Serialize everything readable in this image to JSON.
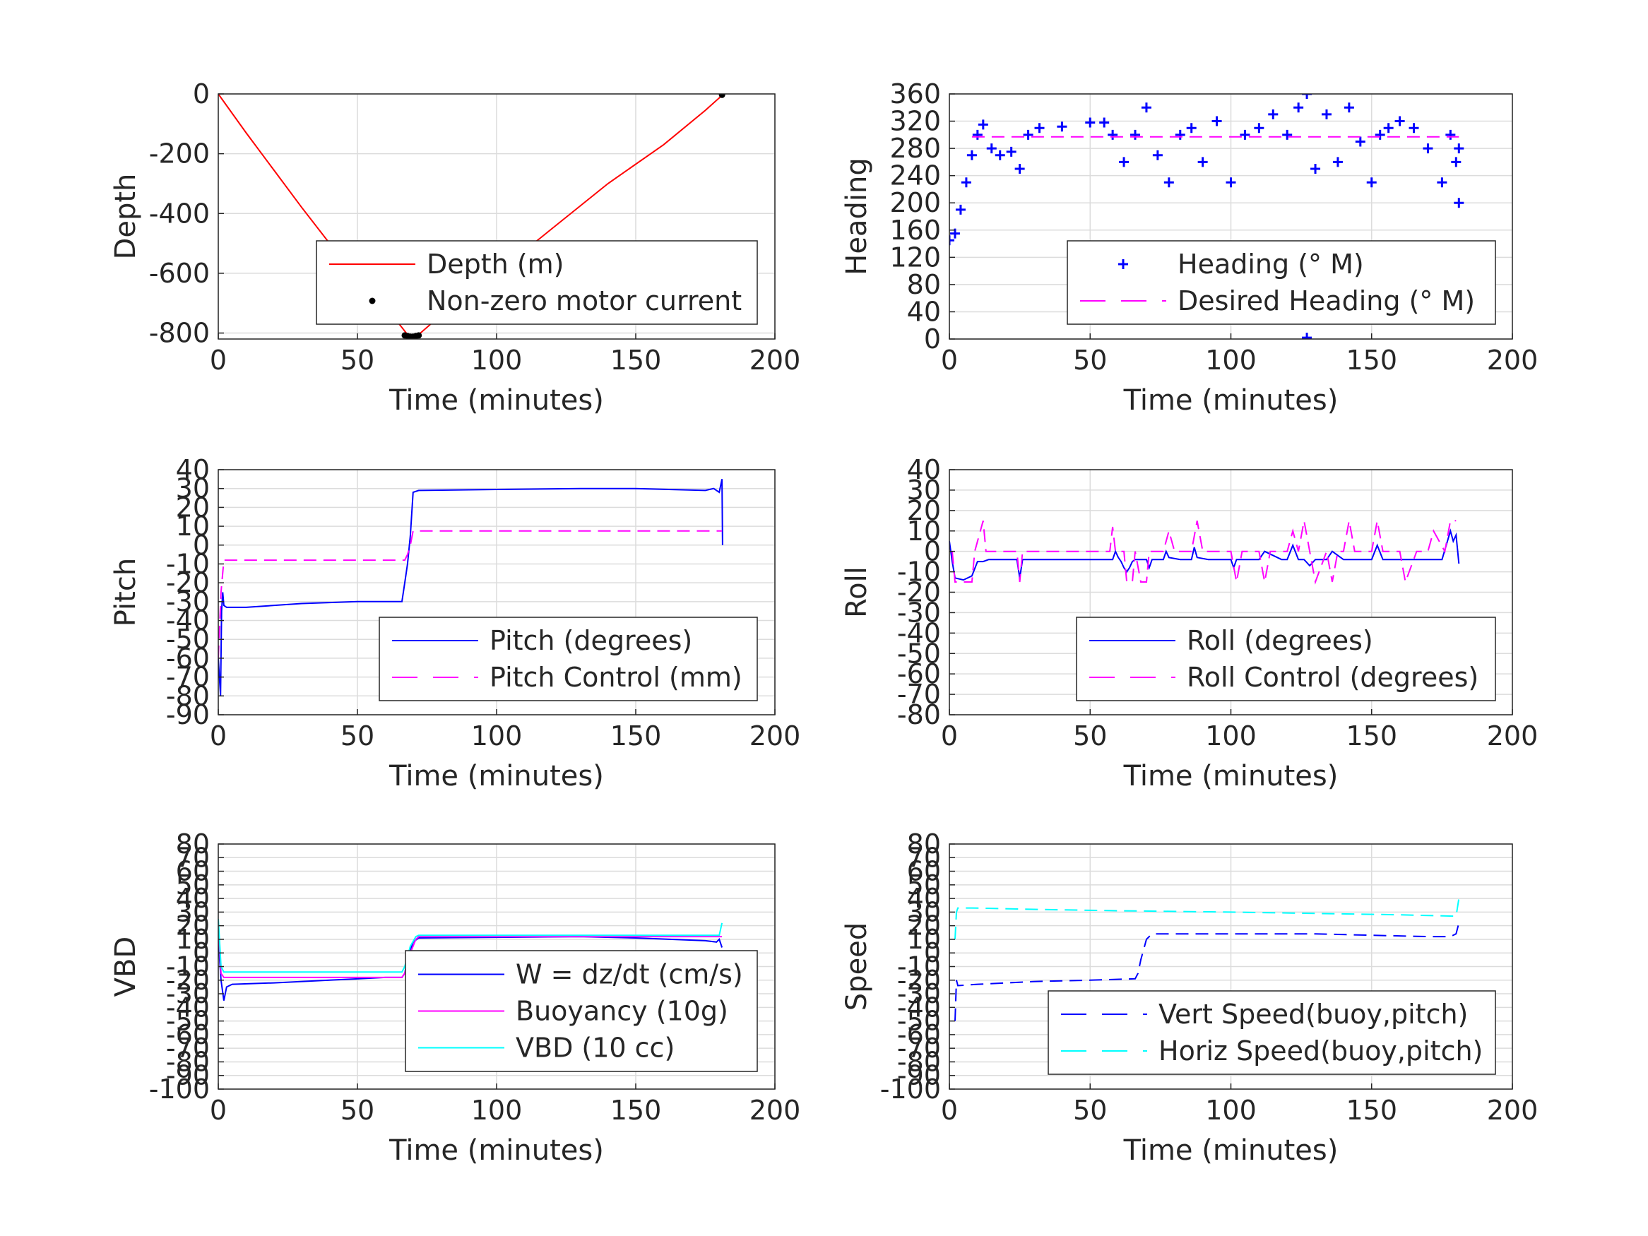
{
  "figure": {
    "colors": {
      "axis": "#262626",
      "grid": "#dcdcdc",
      "red": "#ff0000",
      "blue": "#0000ff",
      "magenta": "#ff00ff",
      "cyan": "#00ffff",
      "black": "#000000"
    }
  },
  "chart_data": [
    {
      "id": "depth",
      "type": "line",
      "xlabel": "Time (minutes)",
      "ylabel": "Depth",
      "xlim": [
        0,
        200
      ],
      "ylim": [
        -820,
        0
      ],
      "xticks": [
        0,
        50,
        100,
        150,
        200
      ],
      "yticks": [
        0,
        -200,
        -400,
        -600,
        -800
      ],
      "grid": true,
      "legend": "bottom-right",
      "series": [
        {
          "name": "Depth (m)",
          "color": "#ff0000",
          "style": "solid",
          "x": [
            0,
            10,
            20,
            30,
            40,
            50,
            60,
            65,
            68,
            70,
            72,
            80,
            100,
            120,
            140,
            160,
            175,
            181
          ],
          "y": [
            0,
            -130,
            -255,
            -380,
            -500,
            -615,
            -720,
            -770,
            -805,
            -810,
            -805,
            -740,
            -600,
            -450,
            -300,
            -170,
            -55,
            -5
          ]
        },
        {
          "name": "Non-zero motor current",
          "color": "#000000",
          "style": "dots",
          "x": [
            56,
            67,
            68,
            69,
            70,
            71,
            72,
            181
          ],
          "y": [
            -700,
            -808,
            -810,
            -812,
            -812,
            -810,
            -808,
            -3
          ]
        }
      ]
    },
    {
      "id": "heading",
      "type": "scatter",
      "xlabel": "Time (minutes)",
      "ylabel": "Heading",
      "xlim": [
        0,
        200
      ],
      "ylim": [
        0,
        360
      ],
      "xticks": [
        0,
        50,
        100,
        150,
        200
      ],
      "yticks": [
        0,
        40,
        80,
        120,
        160,
        200,
        240,
        280,
        320,
        360
      ],
      "grid": true,
      "legend": "bottom-right",
      "series": [
        {
          "name": "Heading (° M)",
          "color": "#0000ff",
          "style": "plus",
          "x": [
            0,
            2,
            4,
            6,
            8,
            10,
            12,
            15,
            18,
            22,
            25,
            28,
            32,
            40,
            50,
            55,
            58,
            62,
            66,
            70,
            74,
            78,
            82,
            86,
            90,
            95,
            100,
            105,
            110,
            115,
            120,
            124,
            127,
            130,
            134,
            138,
            142,
            146,
            150,
            153,
            156,
            160,
            165,
            170,
            175,
            178,
            180,
            181,
            127,
            181
          ],
          "y": [
            145,
            155,
            190,
            230,
            270,
            300,
            315,
            280,
            270,
            275,
            250,
            300,
            310,
            312,
            318,
            318,
            300,
            260,
            300,
            340,
            270,
            230,
            300,
            310,
            260,
            320,
            230,
            300,
            310,
            330,
            300,
            340,
            360,
            250,
            330,
            260,
            340,
            290,
            230,
            300,
            310,
            320,
            310,
            280,
            230,
            300,
            260,
            200,
            2,
            280
          ]
        },
        {
          "name": "Desired Heading (° M)",
          "color": "#ff00ff",
          "style": "dashed",
          "x": [
            8,
            181
          ],
          "y": [
            297,
            297
          ]
        }
      ]
    },
    {
      "id": "pitch",
      "type": "line",
      "xlabel": "Time (minutes)",
      "ylabel": "Pitch",
      "xlim": [
        0,
        200
      ],
      "ylim": [
        -90,
        40
      ],
      "xticks": [
        0,
        50,
        100,
        150,
        200
      ],
      "yticks": [
        40,
        30,
        20,
        10,
        0,
        -10,
        -20,
        -30,
        -40,
        -50,
        -60,
        -70,
        -80,
        -90
      ],
      "grid": true,
      "legend": "bottom-right",
      "series": [
        {
          "name": "Pitch (degrees)",
          "color": "#0000ff",
          "style": "solid",
          "x": [
            0,
            0.8,
            1.2,
            1.6,
            2,
            3,
            10,
            30,
            50,
            66,
            67,
            68,
            69,
            70,
            72,
            100,
            130,
            150,
            175,
            178,
            180,
            181,
            181.2
          ],
          "y": [
            -60,
            -80,
            -35,
            -25,
            -32,
            -33,
            -33,
            -31,
            -30,
            -30,
            -20,
            -10,
            5,
            28,
            29,
            29.5,
            30,
            30,
            29,
            30,
            28,
            35,
            0
          ]
        },
        {
          "name": "Pitch Control (mm)",
          "color": "#ff00ff",
          "style": "dashed",
          "x": [
            0,
            1,
            2,
            66,
            67,
            68,
            69,
            70,
            181
          ],
          "y": [
            -60,
            -25,
            -8,
            -8,
            -8,
            -5,
            0,
            7.5,
            7.5
          ]
        }
      ]
    },
    {
      "id": "roll",
      "type": "line",
      "xlabel": "Time (minutes)",
      "ylabel": "Roll",
      "xlim": [
        0,
        200
      ],
      "ylim": [
        -80,
        40
      ],
      "xticks": [
        0,
        50,
        100,
        150,
        200
      ],
      "yticks": [
        40,
        30,
        20,
        10,
        0,
        -10,
        -20,
        -30,
        -40,
        -50,
        -60,
        -70,
        -80
      ],
      "grid": true,
      "legend": "bottom-right",
      "series": [
        {
          "name": "Roll (degrees)",
          "color": "#0000ff",
          "style": "solid",
          "x": [
            0,
            1,
            2,
            5,
            8,
            10,
            12,
            14,
            24,
            25,
            26,
            58,
            59,
            60,
            61,
            62,
            63,
            64,
            65,
            66,
            70,
            71,
            72,
            76,
            77,
            78,
            82,
            86,
            87,
            88,
            92,
            100,
            101,
            102,
            106,
            110,
            112,
            118,
            120,
            122,
            124,
            126,
            128,
            130,
            134,
            136,
            140,
            142,
            146,
            150,
            152,
            154,
            160,
            165,
            170,
            175,
            178,
            179,
            180,
            181
          ],
          "y": [
            5,
            -5,
            -13,
            -14,
            -12,
            -5,
            -5,
            -4,
            -4,
            -13,
            -4,
            -4,
            0,
            -3,
            -5,
            -8,
            -10,
            -8,
            -5,
            -4,
            -4,
            -8,
            -4,
            -4,
            0,
            -3,
            -4,
            -4,
            2,
            -3,
            -4,
            -4,
            -8,
            -4,
            -4,
            -4,
            0,
            -4,
            -4,
            3,
            -4,
            -4,
            -7,
            -4,
            -4,
            0,
            -4,
            -4,
            -4,
            -4,
            3,
            -4,
            -4,
            -4,
            -4,
            -4,
            10,
            5,
            8,
            -6
          ]
        },
        {
          "name": "Roll Control (degrees)",
          "color": "#ff00ff",
          "style": "dashed",
          "x": [
            1,
            2,
            8,
            9,
            12,
            13,
            14,
            24,
            25,
            26,
            57,
            58,
            59,
            62,
            63,
            65,
            66,
            68,
            70,
            71,
            73,
            76,
            78,
            80,
            84,
            86,
            88,
            90,
            94,
            100,
            102,
            104,
            110,
            112,
            114,
            120,
            122,
            124,
            126,
            128,
            130,
            134,
            136,
            138,
            140,
            142,
            144,
            148,
            150,
            152,
            154,
            160,
            162,
            166,
            170,
            172,
            176,
            178,
            180
          ],
          "y": [
            0,
            -15,
            -15,
            0,
            15,
            0,
            0,
            0,
            -15,
            0,
            0,
            12,
            0,
            0,
            -15,
            -15,
            0,
            -15,
            -15,
            0,
            0,
            0,
            10,
            0,
            0,
            0,
            15,
            0,
            0,
            0,
            -15,
            0,
            0,
            -15,
            0,
            0,
            10,
            0,
            15,
            0,
            -15,
            0,
            -15,
            0,
            0,
            15,
            0,
            0,
            0,
            15,
            0,
            0,
            -15,
            0,
            0,
            10,
            0,
            15,
            15
          ]
        }
      ]
    },
    {
      "id": "vbd",
      "type": "line",
      "xlabel": "Time (minutes)",
      "ylabel": "VBD",
      "xlim": [
        0,
        200
      ],
      "ylim": [
        -100,
        80
      ],
      "xticks": [
        0,
        50,
        100,
        150,
        200
      ],
      "yticks": [
        80,
        70,
        60,
        50,
        40,
        30,
        20,
        10,
        0,
        -10,
        -20,
        -30,
        -40,
        -50,
        -60,
        -70,
        -80,
        -90,
        -100
      ],
      "ytick_labels": [
        "80",
        "70",
        "60",
        "50",
        "40",
        "30",
        "20",
        "10",
        "0",
        "-10",
        "-20",
        "-30",
        "-40",
        "-50",
        "-60",
        "-70",
        "-80",
        "-90",
        "-100"
      ],
      "grid": true,
      "legend": "bottom-right",
      "series": [
        {
          "name": "W = dz/dt (cm/s)",
          "color": "#0000ff",
          "style": "solid",
          "x": [
            0,
            1,
            2,
            3,
            5,
            20,
            40,
            60,
            66,
            67,
            68,
            69,
            70,
            72,
            100,
            130,
            150,
            175,
            179,
            180,
            181
          ],
          "y": [
            10,
            -20,
            -35,
            -25,
            -23,
            -22,
            -20,
            -18,
            -18,
            -15,
            -5,
            2,
            8,
            11,
            11.5,
            12,
            11,
            9,
            8,
            10,
            4
          ]
        },
        {
          "name": "Buoyancy (10g)",
          "color": "#ff00ff",
          "style": "solid",
          "x": [
            0,
            1,
            2,
            3,
            66,
            67,
            69,
            71,
            72,
            181
          ],
          "y": [
            20,
            -15,
            -18,
            -18,
            -18,
            -15,
            0,
            10,
            12,
            12
          ]
        },
        {
          "name": "VBD (10 cc)",
          "color": "#00ffff",
          "style": "solid",
          "x": [
            0,
            1,
            2,
            3,
            66,
            67,
            69,
            71,
            72,
            180,
            181
          ],
          "y": [
            25,
            -10,
            -14,
            -14,
            -14,
            -10,
            5,
            12,
            13,
            13,
            22
          ]
        }
      ]
    },
    {
      "id": "speed",
      "type": "line",
      "xlabel": "Time (minutes)",
      "ylabel": "Speed",
      "xlim": [
        0,
        200
      ],
      "ylim": [
        -100,
        80
      ],
      "xticks": [
        0,
        50,
        100,
        150,
        200
      ],
      "yticks": [
        80,
        70,
        60,
        50,
        40,
        30,
        20,
        10,
        0,
        -10,
        -20,
        -30,
        -40,
        -50,
        -60,
        -70,
        -80,
        -90,
        -100
      ],
      "ytick_labels": [
        "80",
        "70",
        "60",
        "50",
        "40",
        "30",
        "20",
        "10",
        "0",
        "-10",
        "-20",
        "-30",
        "-40",
        "-50",
        "-60",
        "-70",
        "-80",
        "-90",
        "-100"
      ],
      "grid": true,
      "legend": "bottom-right",
      "series": [
        {
          "name": "Vert Speed(buoy,pitch)",
          "color": "#0000ff",
          "style": "dashed",
          "x": [
            2,
            2.5,
            3,
            10,
            30,
            50,
            66,
            67,
            68,
            70,
            72,
            100,
            130,
            150,
            170,
            178,
            180,
            181
          ],
          "y": [
            -50,
            -20,
            -24,
            -23,
            -21,
            -20,
            -19,
            -15,
            -5,
            10,
            14,
            14,
            14,
            13,
            12,
            12,
            14,
            22
          ]
        },
        {
          "name": "Horiz Speed(buoy,pitch)",
          "color": "#00ffff",
          "style": "dashed",
          "x": [
            2,
            2.5,
            3,
            8,
            30,
            60,
            100,
            130,
            160,
            180,
            181
          ],
          "y": [
            10,
            30,
            33,
            33,
            32,
            31,
            30,
            29,
            28,
            27,
            40
          ]
        }
      ]
    }
  ]
}
